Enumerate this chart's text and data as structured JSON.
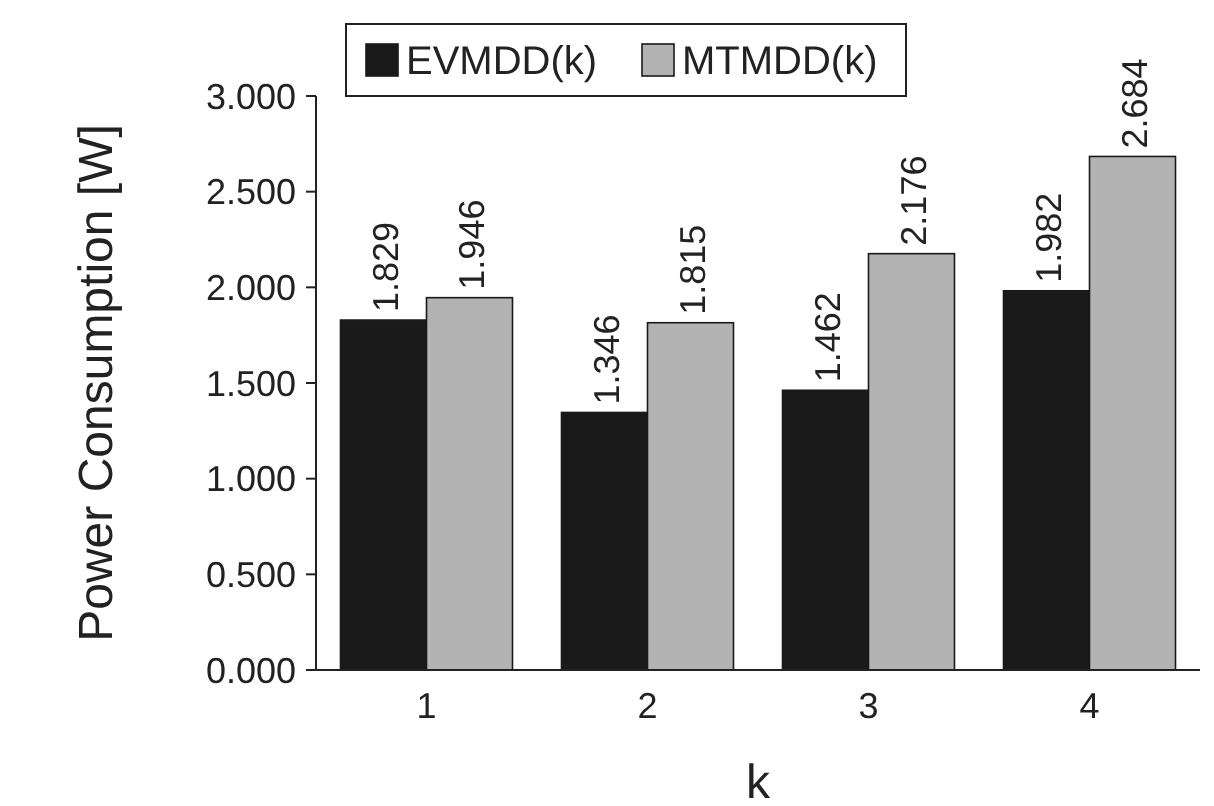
{
  "chart_data": {
    "type": "bar",
    "xlabel": "k",
    "ylabel": "Power Consumption [W]",
    "categories": [
      "1",
      "2",
      "3",
      "4"
    ],
    "series": [
      {
        "name": "EVMDD(k)",
        "color": "#1a1a1a",
        "values": [
          1.829,
          1.346,
          1.462,
          1.982
        ]
      },
      {
        "name": "MTMDD(k)",
        "color": "#b3b3b3",
        "values": [
          1.946,
          1.815,
          2.176,
          2.684
        ]
      }
    ],
    "ylim": [
      0,
      3
    ],
    "yticks": [
      {
        "value": 0,
        "label": "0.000"
      },
      {
        "value": 0.5,
        "label": "0.500"
      },
      {
        "value": 1,
        "label": "1.000"
      },
      {
        "value": 1.5,
        "label": "1.500"
      },
      {
        "value": 2,
        "label": "2.000"
      },
      {
        "value": 2.5,
        "label": "2.500"
      },
      {
        "value": 3,
        "label": "3.000"
      }
    ],
    "data_labels": true,
    "legend": "top",
    "grid": false
  }
}
